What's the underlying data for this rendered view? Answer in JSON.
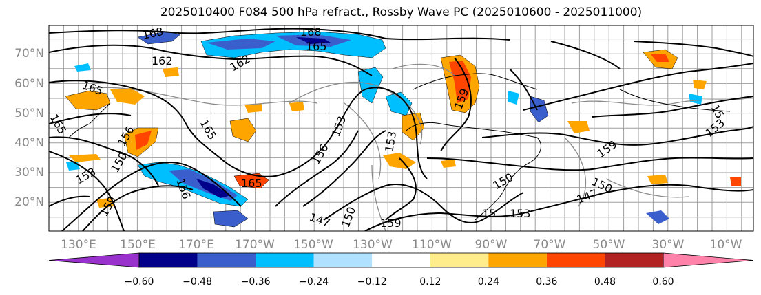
{
  "title": "2025010400 F084 500 hPa refract., Rossby Wave PC (2025010600 - 2025011000)",
  "latitude_labels": [
    "70°N",
    "60°N",
    "50°N",
    "40°N",
    "30°N",
    "20°N"
  ],
  "longitude_labels": [
    "130°E",
    "150°E",
    "170°E",
    "170°W",
    "150°W",
    "130°W",
    "110°W",
    "90°W",
    "70°W",
    "50°W",
    "30°W",
    "10°W"
  ],
  "contour_labels": [
    "168",
    "168",
    "165",
    "162",
    "165",
    "162",
    "165",
    "165",
    "156",
    "153",
    "156",
    "165",
    "159",
    "150",
    "153",
    "147",
    "150",
    "159",
    "156",
    "153",
    "150",
    "150",
    "159",
    "147",
    "153",
    "159",
    "15",
    "153",
    "15"
  ],
  "colorbar": {
    "tick_labels": [
      "−0.60",
      "−0.48",
      "−0.36",
      "−0.24",
      "−0.12",
      "0.12",
      "0.24",
      "0.36",
      "0.48",
      "0.60"
    ],
    "colors": [
      "#9932cc",
      "#00008b",
      "#3a5fcd",
      "#00bfff",
      "#b0e2ff",
      "#ffffff",
      "#ffec8b",
      "#ffa500",
      "#ff4500",
      "#b22222",
      "#ff82ab"
    ]
  }
}
